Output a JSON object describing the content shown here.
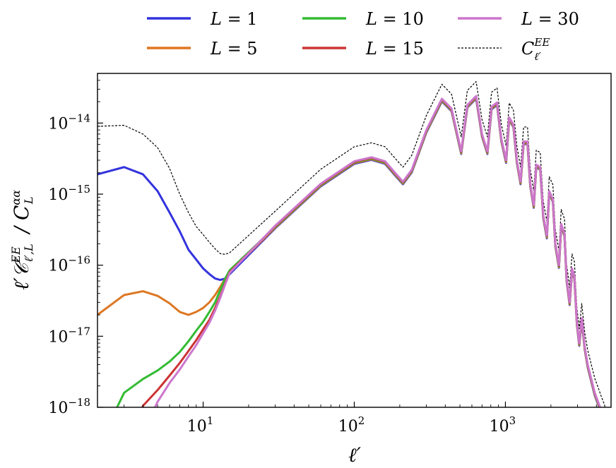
{
  "chart_data": {
    "type": "line",
    "xscale": "log",
    "yscale": "log",
    "xlim": [
      2,
      5000
    ],
    "ylim": [
      1e-18,
      5e-14
    ],
    "xlabel": "ℓ′",
    "ylabel": "ℓ′𝒞^EE_ℓ′,L / C^αα_L",
    "x_ticks": [
      {
        "value": 10,
        "base": "10",
        "exp": "1"
      },
      {
        "value": 100,
        "base": "10",
        "exp": "2"
      },
      {
        "value": 1000,
        "base": "10",
        "exp": "3"
      }
    ],
    "y_ticks": [
      {
        "value": 1e-18,
        "base": "10",
        "exp": "−18"
      },
      {
        "value": 1e-17,
        "base": "10",
        "exp": "−17"
      },
      {
        "value": 1e-16,
        "base": "10",
        "exp": "−16"
      },
      {
        "value": 1e-15,
        "base": "10",
        "exp": "−15"
      },
      {
        "value": 1e-14,
        "base": "10",
        "exp": "−14"
      }
    ],
    "legend_position": "top, above plot, 3 columns",
    "envelope_x": [
      15,
      30,
      60,
      100,
      130,
      160,
      190,
      210,
      240,
      300,
      380,
      440,
      510,
      560,
      640,
      700,
      760,
      810,
      880,
      940,
      1010,
      1060,
      1130,
      1190,
      1260,
      1320,
      1400,
      1460,
      1540,
      1600,
      1700,
      1780,
      1880,
      1950,
      2060,
      2140,
      2260,
      2340,
      2460,
      2540,
      2660,
      2760,
      2860,
      2970,
      3080,
      3200,
      3350,
      3500,
      3700,
      3900,
      4100,
      4300,
      4500,
      4700
    ],
    "envelope_y": [
      1e-16,
      3.6e-16,
      1.4e-15,
      2.9e-15,
      3.3e-15,
      2.9e-15,
      1.9e-15,
      1.5e-15,
      2.2e-15,
      8e-15,
      2.2e-14,
      1.6e-14,
      4e-15,
      1.8e-14,
      2.4e-14,
      7e-15,
      4e-15,
      1.7e-14,
      1.95e-14,
      6e-15,
      3e-15,
      1.2e-14,
      9.5e-15,
      3e-15,
      1.5e-15,
      5.5e-15,
      5.5e-15,
      1.4e-15,
      7e-16,
      2.6e-15,
      2.4e-15,
      5e-16,
      2.6e-16,
      1.1e-15,
      8.5e-16,
      2e-16,
      1e-16,
      3.8e-16,
      2.8e-16,
      6.5e-17,
      3e-17,
      9e-17,
      7e-17,
      1.6e-17,
      8e-18,
      1.8e-17,
      7e-18,
      4e-18,
      2.5e-18,
      1.6e-18,
      1.2e-18,
      9e-19,
      7e-19,
      5e-19
    ],
    "reference_scale": 1.6,
    "series": [
      {
        "name": "L = 1",
        "label_lhs": "L",
        "label_rhs": "= 1",
        "color": "#3333dd",
        "x": [
          2,
          3,
          4,
          5,
          6,
          7,
          8,
          9,
          10,
          11,
          12,
          13,
          14,
          15
        ],
        "y": [
          1.9e-15,
          2.4e-15,
          1.9e-15,
          1.1e-15,
          5.5e-16,
          3e-16,
          1.65e-16,
          1.2e-16,
          9e-17,
          7.5e-17,
          6.5e-17,
          6.2e-17,
          6.5e-17,
          7.5e-17
        ],
        "follows_envelope_from": 15
      },
      {
        "name": "L = 5",
        "label_lhs": "L",
        "label_rhs": "= 5",
        "color": "#dd7722",
        "x": [
          2,
          3,
          4,
          5,
          6,
          7,
          8,
          9,
          10,
          11,
          12,
          13,
          14,
          15
        ],
        "y": [
          2e-17,
          3.8e-17,
          4.3e-17,
          3.7e-17,
          2.9e-17,
          2.2e-17,
          2e-17,
          2.2e-17,
          2.5e-17,
          3e-17,
          3.8e-17,
          5e-17,
          6.5e-17,
          8e-17
        ],
        "follows_envelope_from": 15
      },
      {
        "name": "L = 10",
        "label_lhs": "L",
        "label_rhs": "= 10",
        "color": "#33bb33",
        "x": [
          2.4,
          3,
          4,
          5,
          6,
          7,
          8,
          9,
          10,
          11,
          12,
          13,
          14,
          15
        ],
        "y": [
          6e-19,
          1.6e-18,
          2.5e-18,
          3.3e-18,
          4.4e-18,
          6e-18,
          8.5e-18,
          1.2e-17,
          1.6e-17,
          2.2e-17,
          3e-17,
          4.5e-17,
          6.5e-17,
          8.5e-17
        ],
        "follows_envelope_from": 15
      },
      {
        "name": "L = 15",
        "label_lhs": "L",
        "label_rhs": "= 15",
        "color": "#cc3333",
        "x": [
          3.6,
          4,
          5,
          6,
          7,
          8,
          9,
          10,
          11,
          12,
          13,
          14,
          15
        ],
        "y": [
          6e-19,
          1.05e-18,
          1.75e-18,
          2.8e-18,
          4.2e-18,
          6.2e-18,
          8.8e-18,
          1.25e-17,
          1.7e-17,
          2.5e-17,
          3.7e-17,
          5.6e-17,
          8e-17
        ],
        "follows_envelope_from": 15
      },
      {
        "name": "L = 30",
        "label_lhs": "L",
        "label_rhs": "= 30",
        "color": "#cc77cc",
        "x": [
          4.3,
          5,
          6,
          7,
          8,
          9,
          10,
          11,
          12,
          13,
          14,
          15
        ],
        "y": [
          6e-19,
          1.2e-18,
          2.2e-18,
          3.4e-18,
          5.2e-18,
          7.5e-18,
          1.1e-17,
          1.55e-17,
          2.3e-17,
          3.5e-17,
          5.4e-17,
          7.8e-17
        ],
        "follows_envelope_from": 15
      },
      {
        "name": "C^EE_ℓ′",
        "label_main": "C",
        "label_sup": "EE",
        "label_sub": "ℓ′",
        "color": "#000000",
        "dashed": true,
        "x": [
          2,
          3,
          4,
          5,
          6,
          7,
          8,
          9,
          10,
          11,
          12,
          13,
          14,
          15
        ],
        "y": [
          9e-15,
          9.3e-15,
          7e-15,
          4.5e-15,
          2.3e-15,
          1e-15,
          5.5e-16,
          3.5e-16,
          2.7e-16,
          2.1e-16,
          1.7e-16,
          1.45e-16,
          1.42e-16,
          1.5e-16
        ],
        "follows_envelope_from": 15
      }
    ]
  }
}
